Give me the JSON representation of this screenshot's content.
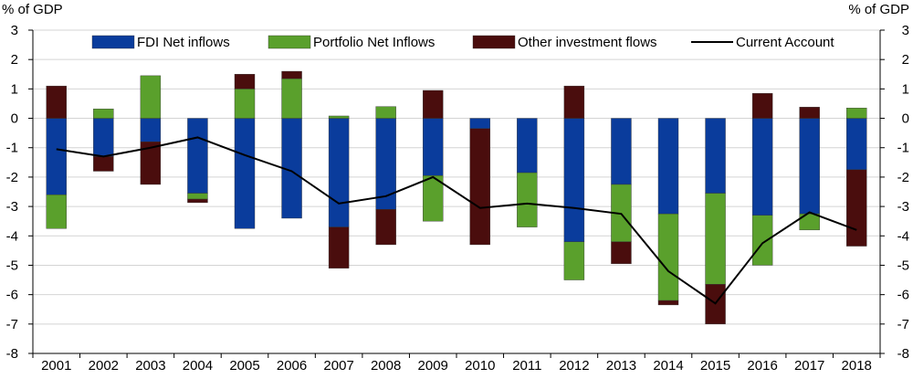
{
  "chart_data": {
    "type": "bar",
    "stacked": true,
    "left_axis_unit": "% of GDP",
    "right_axis_unit": "% of GDP",
    "ylim": [
      -8,
      3
    ],
    "yticks": [
      3,
      2,
      1,
      0,
      -1,
      -2,
      -3,
      -4,
      -5,
      -6,
      -7,
      -8
    ],
    "grid": "horizontal",
    "legend_position": "top",
    "categories": [
      "2001",
      "2002",
      "2003",
      "2004",
      "2005",
      "2006",
      "2007",
      "2008",
      "2009",
      "2010",
      "2011",
      "2012",
      "2013",
      "2014",
      "2015",
      "2016",
      "2017",
      "2018"
    ],
    "series": [
      {
        "name": "FDI Net inflows",
        "kind": "bar",
        "color": "#0a3c9c",
        "values": [
          -2.6,
          -1.3,
          -0.8,
          -2.55,
          -3.75,
          -3.4,
          -3.7,
          -3.1,
          -1.95,
          -0.35,
          -1.85,
          -4.2,
          -2.25,
          -3.25,
          -2.55,
          -3.3,
          -3.25,
          -1.75
        ]
      },
      {
        "name": "Portfolio Net Inflows",
        "kind": "bar",
        "color": "#5aa02c",
        "values": [
          -1.15,
          0.32,
          1.45,
          -0.2,
          1.0,
          1.35,
          0.08,
          0.4,
          -1.55,
          0.0,
          -1.85,
          -1.3,
          -1.95,
          -2.95,
          -3.1,
          -1.7,
          -0.55,
          0.35
        ]
      },
      {
        "name": "Other investment flows",
        "kind": "bar",
        "color": "#4a0d0d",
        "values": [
          1.1,
          -0.5,
          -1.45,
          -0.12,
          0.5,
          0.25,
          -1.4,
          -1.2,
          0.95,
          -3.95,
          0.0,
          1.1,
          -0.75,
          -0.15,
          -1.35,
          0.85,
          0.38,
          -2.6
        ]
      },
      {
        "name": "Current Account",
        "kind": "line",
        "color": "#000000",
        "values": [
          -1.05,
          -1.3,
          -1.0,
          -0.65,
          -1.25,
          -1.8,
          -2.9,
          -2.65,
          -2.0,
          -3.05,
          -2.9,
          -3.05,
          -3.25,
          -5.2,
          -6.3,
          -4.25,
          -3.2,
          -3.8
        ]
      }
    ]
  }
}
